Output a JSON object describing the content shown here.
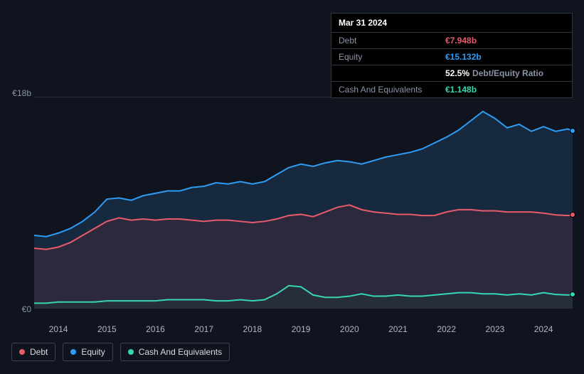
{
  "tooltip": {
    "date": "Mar 31 2024",
    "rows": [
      {
        "label": "Debt",
        "value": "€7.948b",
        "color": "#e85b6b"
      },
      {
        "label": "Equity",
        "value": "€15.132b",
        "color": "#2f9cf4"
      },
      {
        "label": "",
        "ratio_pct": "52.5%",
        "ratio_label": "Debt/Equity Ratio"
      },
      {
        "label": "Cash And Equivalents",
        "value": "€1.148b",
        "color": "#36d6b0"
      }
    ]
  },
  "chart": {
    "type": "area",
    "background": "#10141f",
    "grid_color": "#2a3040",
    "ymax": 18,
    "ymin": 0,
    "ylabel_top": "€18b",
    "ylabel_bottom": "€0",
    "x_start": 2013.5,
    "x_end": 2024.6,
    "x_ticks": [
      2014,
      2015,
      2016,
      2017,
      2018,
      2019,
      2020,
      2021,
      2022,
      2023,
      2024
    ],
    "series": [
      {
        "name": "Equity",
        "stroke": "#2f9cf4",
        "fill": "#1b3a5a",
        "fill_opacity": 0.55,
        "stroke_width": 2,
        "data": [
          [
            2013.5,
            6.2
          ],
          [
            2013.75,
            6.1
          ],
          [
            2014.0,
            6.4
          ],
          [
            2014.25,
            6.8
          ],
          [
            2014.5,
            7.4
          ],
          [
            2014.75,
            8.2
          ],
          [
            2015.0,
            9.3
          ],
          [
            2015.25,
            9.4
          ],
          [
            2015.5,
            9.2
          ],
          [
            2015.75,
            9.6
          ],
          [
            2016.0,
            9.8
          ],
          [
            2016.25,
            10.0
          ],
          [
            2016.5,
            10.0
          ],
          [
            2016.75,
            10.3
          ],
          [
            2017.0,
            10.4
          ],
          [
            2017.25,
            10.7
          ],
          [
            2017.5,
            10.6
          ],
          [
            2017.75,
            10.8
          ],
          [
            2018.0,
            10.6
          ],
          [
            2018.25,
            10.8
          ],
          [
            2018.5,
            11.4
          ],
          [
            2018.75,
            12.0
          ],
          [
            2019.0,
            12.3
          ],
          [
            2019.25,
            12.1
          ],
          [
            2019.5,
            12.4
          ],
          [
            2019.75,
            12.6
          ],
          [
            2020.0,
            12.5
          ],
          [
            2020.25,
            12.3
          ],
          [
            2020.5,
            12.6
          ],
          [
            2020.75,
            12.9
          ],
          [
            2021.0,
            13.1
          ],
          [
            2021.25,
            13.3
          ],
          [
            2021.5,
            13.6
          ],
          [
            2021.75,
            14.1
          ],
          [
            2022.0,
            14.6
          ],
          [
            2022.25,
            15.2
          ],
          [
            2022.5,
            16.0
          ],
          [
            2022.75,
            16.8
          ],
          [
            2023.0,
            16.2
          ],
          [
            2023.25,
            15.4
          ],
          [
            2023.5,
            15.7
          ],
          [
            2023.75,
            15.1
          ],
          [
            2024.0,
            15.5
          ],
          [
            2024.25,
            15.1
          ],
          [
            2024.5,
            15.3
          ],
          [
            2024.6,
            15.13
          ]
        ]
      },
      {
        "name": "Debt",
        "stroke": "#e85b6b",
        "fill": "#4a2b3a",
        "fill_opacity": 0.45,
        "stroke_width": 2,
        "data": [
          [
            2013.5,
            5.1
          ],
          [
            2013.75,
            5.0
          ],
          [
            2014.0,
            5.2
          ],
          [
            2014.25,
            5.6
          ],
          [
            2014.5,
            6.2
          ],
          [
            2014.75,
            6.8
          ],
          [
            2015.0,
            7.4
          ],
          [
            2015.25,
            7.7
          ],
          [
            2015.5,
            7.5
          ],
          [
            2015.75,
            7.6
          ],
          [
            2016.0,
            7.5
          ],
          [
            2016.25,
            7.6
          ],
          [
            2016.5,
            7.6
          ],
          [
            2016.75,
            7.5
          ],
          [
            2017.0,
            7.4
          ],
          [
            2017.25,
            7.5
          ],
          [
            2017.5,
            7.5
          ],
          [
            2017.75,
            7.4
          ],
          [
            2018.0,
            7.3
          ],
          [
            2018.25,
            7.4
          ],
          [
            2018.5,
            7.6
          ],
          [
            2018.75,
            7.9
          ],
          [
            2019.0,
            8.0
          ],
          [
            2019.25,
            7.8
          ],
          [
            2019.5,
            8.2
          ],
          [
            2019.75,
            8.6
          ],
          [
            2020.0,
            8.8
          ],
          [
            2020.25,
            8.4
          ],
          [
            2020.5,
            8.2
          ],
          [
            2020.75,
            8.1
          ],
          [
            2021.0,
            8.0
          ],
          [
            2021.25,
            8.0
          ],
          [
            2021.5,
            7.9
          ],
          [
            2021.75,
            7.9
          ],
          [
            2022.0,
            8.2
          ],
          [
            2022.25,
            8.4
          ],
          [
            2022.5,
            8.4
          ],
          [
            2022.75,
            8.3
          ],
          [
            2023.0,
            8.3
          ],
          [
            2023.25,
            8.2
          ],
          [
            2023.5,
            8.2
          ],
          [
            2023.75,
            8.2
          ],
          [
            2024.0,
            8.1
          ],
          [
            2024.25,
            7.95
          ],
          [
            2024.5,
            7.9
          ],
          [
            2024.6,
            7.95
          ]
        ]
      },
      {
        "name": "Cash And Equivalents",
        "stroke": "#36d6b0",
        "fill": "#1a3a3a",
        "fill_opacity": 0.35,
        "stroke_width": 2,
        "data": [
          [
            2013.5,
            0.4
          ],
          [
            2013.75,
            0.4
          ],
          [
            2014.0,
            0.5
          ],
          [
            2014.25,
            0.5
          ],
          [
            2014.5,
            0.5
          ],
          [
            2014.75,
            0.5
          ],
          [
            2015.0,
            0.6
          ],
          [
            2015.25,
            0.6
          ],
          [
            2015.5,
            0.6
          ],
          [
            2015.75,
            0.6
          ],
          [
            2016.0,
            0.6
          ],
          [
            2016.25,
            0.7
          ],
          [
            2016.5,
            0.7
          ],
          [
            2016.75,
            0.7
          ],
          [
            2017.0,
            0.7
          ],
          [
            2017.25,
            0.6
          ],
          [
            2017.5,
            0.6
          ],
          [
            2017.75,
            0.7
          ],
          [
            2018.0,
            0.6
          ],
          [
            2018.25,
            0.7
          ],
          [
            2018.5,
            1.2
          ],
          [
            2018.75,
            1.9
          ],
          [
            2019.0,
            1.8
          ],
          [
            2019.25,
            1.1
          ],
          [
            2019.5,
            0.9
          ],
          [
            2019.75,
            0.9
          ],
          [
            2020.0,
            1.0
          ],
          [
            2020.25,
            1.2
          ],
          [
            2020.5,
            1.0
          ],
          [
            2020.75,
            1.0
          ],
          [
            2021.0,
            1.1
          ],
          [
            2021.25,
            1.0
          ],
          [
            2021.5,
            1.0
          ],
          [
            2021.75,
            1.1
          ],
          [
            2022.0,
            1.2
          ],
          [
            2022.25,
            1.3
          ],
          [
            2022.5,
            1.3
          ],
          [
            2022.75,
            1.2
          ],
          [
            2023.0,
            1.2
          ],
          [
            2023.25,
            1.1
          ],
          [
            2023.5,
            1.2
          ],
          [
            2023.75,
            1.1
          ],
          [
            2024.0,
            1.3
          ],
          [
            2024.25,
            1.15
          ],
          [
            2024.5,
            1.1
          ],
          [
            2024.6,
            1.15
          ]
        ]
      }
    ],
    "end_markers": [
      {
        "color": "#2f9cf4",
        "y": 15.13
      },
      {
        "color": "#e85b6b",
        "y": 7.95
      },
      {
        "color": "#36d6b0",
        "y": 1.15
      }
    ]
  },
  "legend": [
    {
      "label": "Debt",
      "color": "#e85b6b"
    },
    {
      "label": "Equity",
      "color": "#2f9cf4"
    },
    {
      "label": "Cash And Equivalents",
      "color": "#36d6b0"
    }
  ]
}
